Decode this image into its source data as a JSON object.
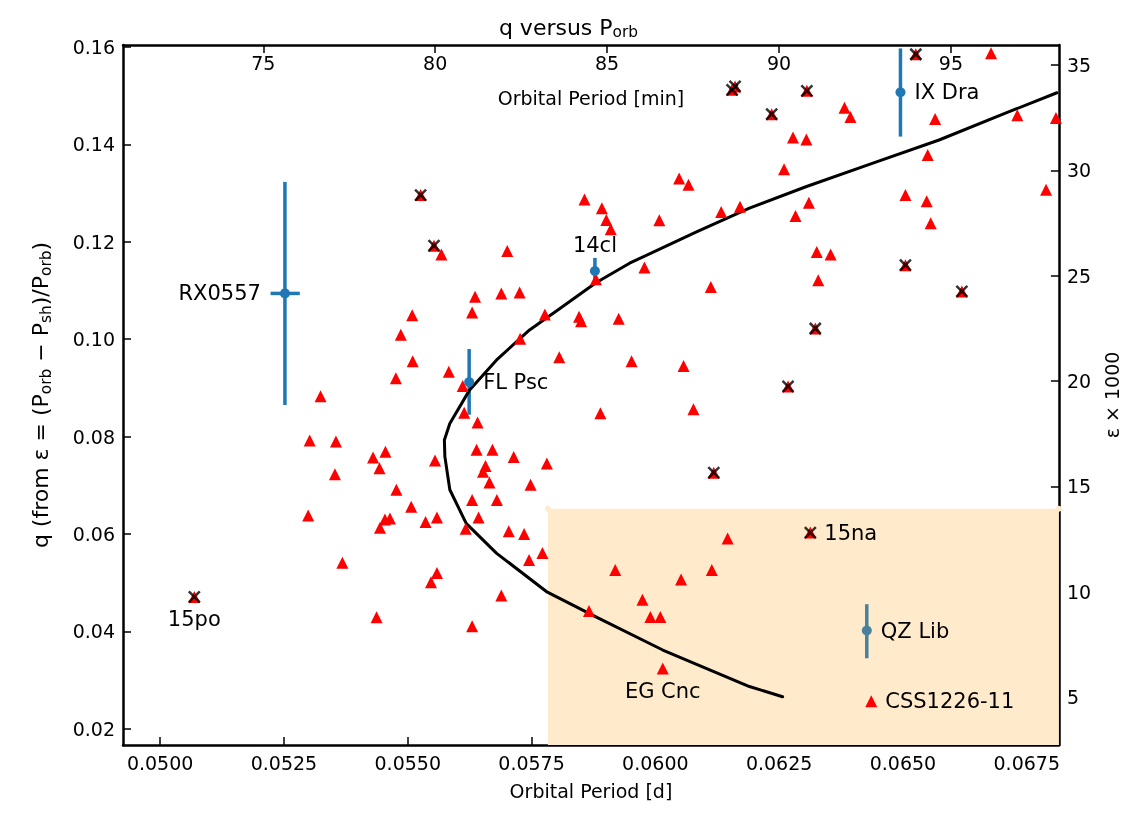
{
  "chart_data": {
    "type": "scatter",
    "title": "q versus P$_{orb}$",
    "xlabel": "Orbital Period [d]",
    "x2label": "Orbital Period [min]",
    "ylabel": "q (from ε = (P$_{orb}$ − P$_{sh}$)/P$_{orb}$)",
    "y2label": "ε × 1000",
    "xlim": [
      0.04925,
      0.06815
    ],
    "ylim": [
      0.0167,
      0.1604
    ],
    "x2lim": [
      70.92,
      98.14
    ],
    "y2lim": [
      2.72,
      35.95
    ],
    "xticks": [
      {
        "value": 0.05,
        "label": "0.0500"
      },
      {
        "value": 0.0525,
        "label": "0.0525"
      },
      {
        "value": 0.055,
        "label": "0.0550"
      },
      {
        "value": 0.0575,
        "label": "0.0575"
      },
      {
        "value": 0.06,
        "label": "0.0600"
      },
      {
        "value": 0.0625,
        "label": "0.0625"
      },
      {
        "value": 0.065,
        "label": "0.0650"
      },
      {
        "value": 0.0675,
        "label": "0.0675"
      }
    ],
    "yticks": [
      {
        "value": 0.02,
        "label": "0.02"
      },
      {
        "value": 0.04,
        "label": "0.04"
      },
      {
        "value": 0.06,
        "label": "0.06"
      },
      {
        "value": 0.08,
        "label": "0.08"
      },
      {
        "value": 0.1,
        "label": "0.10"
      },
      {
        "value": 0.12,
        "label": "0.12"
      },
      {
        "value": 0.14,
        "label": "0.14"
      },
      {
        "value": 0.16,
        "label": "0.16"
      }
    ],
    "x2ticks": [
      75,
      80,
      85,
      90,
      95
    ],
    "y2ticks": [
      5,
      10,
      15,
      20,
      25,
      30,
      35
    ],
    "series": [
      {
        "type": "area",
        "color": "#ffebcc",
        "x": [
          0.05783,
          0.06815
        ],
        "values": [
          0.0652,
          0.0652
        ]
      },
      {
        "type": "line",
        "color": "#000000",
        "marker": "none",
        "line_style": "solid",
        "x": [
          0.06257,
          0.0619,
          0.06015,
          0.0588,
          0.0578,
          0.05679,
          0.05618,
          0.05585,
          0.05575,
          0.05574,
          0.05585,
          0.05625,
          0.05679,
          0.05746,
          0.05813,
          0.0588,
          0.05948,
          0.06082,
          0.0619,
          0.06304,
          0.06438,
          0.06573,
          0.06707,
          0.06811
        ],
        "values": [
          0.0266,
          0.0287,
          0.0362,
          0.043,
          0.0482,
          0.0561,
          0.0622,
          0.0691,
          0.0759,
          0.0793,
          0.0827,
          0.0896,
          0.0957,
          0.1019,
          0.1067,
          0.1116,
          0.1156,
          0.122,
          0.1269,
          0.1313,
          0.1361,
          0.1409,
          0.1464,
          0.1506
        ]
      },
      {
        "type": "scatter",
        "color": "#ff0000",
        "marker": "triangle",
        "x": [
          0.05324,
          0.05302,
          0.05355,
          0.0543,
          0.05455,
          0.05443,
          0.05353,
          0.05477,
          0.05555,
          0.05507,
          0.05299,
          0.05454,
          0.05464,
          0.05444,
          0.05536,
          0.05559,
          0.05368,
          0.05559,
          0.05547,
          0.05437,
          0.05509,
          0.05486,
          0.0551,
          0.05476,
          0.05568,
          0.06048,
          0.06067,
          0.05857,
          0.05892,
          0.06008,
          0.06133,
          0.06171,
          0.05901,
          0.0591,
          0.05701,
          0.05978,
          0.0588,
          0.06112,
          0.05636,
          0.0563,
          0.05689,
          0.05726,
          0.05777,
          0.05846,
          0.0585,
          0.05926,
          0.05727,
          0.05806,
          0.05952,
          0.06057,
          0.05583,
          0.05611,
          0.06678,
          0.06382,
          0.06394,
          0.06565,
          0.06731,
          0.06809,
          0.06278,
          0.06305,
          0.0655,
          0.0626,
          0.06789,
          0.06505,
          0.06548,
          0.06556,
          0.0631,
          0.06283,
          0.06326,
          0.06354,
          0.06329,
          0.05614,
          0.05641,
          0.05889,
          0.06077,
          0.05639,
          0.05671,
          0.05714,
          0.05781,
          0.05657,
          0.05652,
          0.05665,
          0.05748,
          0.0563,
          0.0568,
          0.05643,
          0.05617,
          0.05704,
          0.05735,
          0.05772,
          0.05745,
          0.05689,
          0.0563,
          0.05919,
          0.05974,
          0.0599,
          0.0601,
          0.05866,
          0.06052,
          0.06114,
          0.06146,
          0.06015,
          0.06436,
          0.05069,
          0.05526,
          0.05553,
          0.06155,
          0.06161,
          0.06526,
          0.06306,
          0.06235,
          0.06505,
          0.06619,
          0.06323,
          0.06268,
          0.06118,
          0.06313
        ],
        "values": [
          0.0883,
          0.0792,
          0.079,
          0.0757,
          0.0769,
          0.0735,
          0.0723,
          0.0691,
          0.0751,
          0.0656,
          0.0638,
          0.063,
          0.0632,
          0.0613,
          0.0625,
          0.0634,
          0.0541,
          0.052,
          0.0501,
          0.0429,
          0.1049,
          0.1009,
          0.0955,
          0.092,
          0.1174,
          0.133,
          0.1317,
          0.1287,
          0.1269,
          0.1244,
          0.1261,
          0.1272,
          0.1245,
          0.1226,
          0.1181,
          0.1147,
          0.1123,
          0.1107,
          0.1087,
          0.1055,
          0.1094,
          0.1096,
          0.1051,
          0.1046,
          0.1037,
          0.1042,
          0.1001,
          0.0963,
          0.0955,
          0.0945,
          0.0933,
          0.0904,
          0.1587,
          0.1475,
          0.1456,
          0.1452,
          0.146,
          0.1454,
          0.1414,
          0.141,
          0.1378,
          0.1349,
          0.1307,
          0.1296,
          0.1283,
          0.1238,
          0.128,
          0.1253,
          0.1179,
          0.1174,
          0.1121,
          0.0849,
          0.0829,
          0.0848,
          0.0856,
          0.0773,
          0.0773,
          0.0758,
          0.0745,
          0.074,
          0.0728,
          0.0706,
          0.0701,
          0.067,
          0.067,
          0.0634,
          0.0611,
          0.0606,
          0.06,
          0.0561,
          0.0547,
          0.0474,
          0.0411,
          0.0526,
          0.0465,
          0.043,
          0.043,
          0.0442,
          0.0507,
          0.0526,
          0.0591,
          0.0324,
          0.0257,
          0.0471,
          0.1296,
          0.1192,
          0.1512,
          0.1519,
          0.1585,
          0.151,
          0.1462,
          0.1152,
          0.1098,
          0.1022,
          0.0903,
          0.0726,
          0.0603
        ]
      },
      {
        "type": "scatter",
        "color": "#000000",
        "marker": "cross",
        "x": [
          0.05069,
          0.05526,
          0.05553,
          0.06155,
          0.06161,
          0.06526,
          0.06306,
          0.06235,
          0.06505,
          0.06619,
          0.06323,
          0.06268,
          0.06118,
          0.06313
        ],
        "values": [
          0.0471,
          0.1296,
          0.1192,
          0.1512,
          0.1519,
          0.1585,
          0.151,
          0.1462,
          0.1152,
          0.1098,
          0.1022,
          0.0903,
          0.0726,
          0.0603
        ]
      },
      {
        "type": "scatter",
        "color": "#1f77b4",
        "marker": "circle",
        "x": [
          0.05252,
          0.05624,
          0.05878,
          0.06495
        ],
        "values": [
          0.1094,
          0.0912,
          0.114,
          0.1507
        ],
        "errors": [
          [
            0.0865,
            0.1323
          ],
          [
            0.0845,
            0.098
          ],
          0.0027,
          [
            0.1416,
            0.1597
          ]
        ],
        "xerrors": [
          [
            0.05223,
            0.05282
          ],
          null,
          null,
          null
        ]
      },
      {
        "type": "scatter",
        "color": "#4a809a",
        "marker": "circle",
        "x": [
          0.06427
        ],
        "values": [
          0.0402
        ],
        "errors": [
          [
            0.0345,
            0.0456
          ]
        ]
      }
    ],
    "annotations": [
      {
        "text": "RX0557",
        "x": 0.05252,
        "y": 0.1094
      },
      {
        "text": "FL Psc",
        "x": 0.05624,
        "y": 0.0912
      },
      {
        "text": "14cl",
        "x": 0.05878,
        "y": 0.114
      },
      {
        "text": "IX Dra",
        "x": 0.06495,
        "y": 0.1507
      },
      {
        "text": "15po",
        "x": 0.05069,
        "y": 0.0471
      },
      {
        "text": "15na",
        "x": 0.06313,
        "y": 0.0603
      },
      {
        "text": "QZ Lib",
        "x": 0.06427,
        "y": 0.0402
      },
      {
        "text": "EG Cnc",
        "x": 0.06015,
        "y": 0.0324
      },
      {
        "text": "CSS1226-11",
        "x": 0.06436,
        "y": 0.0257
      }
    ]
  }
}
